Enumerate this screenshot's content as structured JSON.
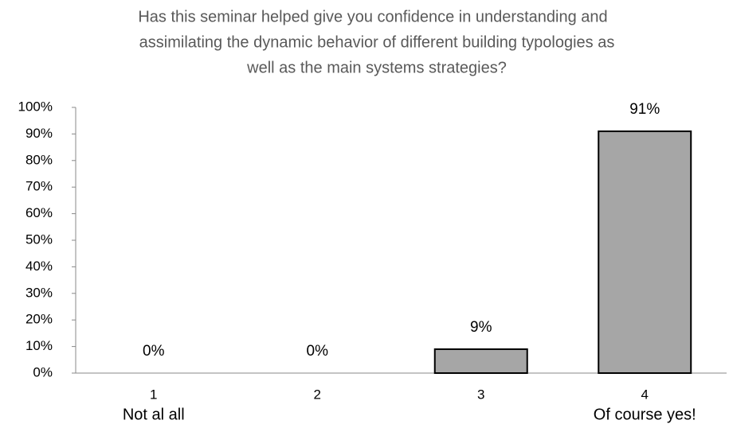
{
  "chart_data": {
    "type": "bar",
    "title": [
      "Has this seminar helped give you confidence in understanding and",
      "assimilating the dynamic behavior of different building typologies as",
      "well as the main systems strategies?"
    ],
    "categories": [
      "1",
      "2",
      "3",
      "4"
    ],
    "category_sublabels": [
      "Not al all",
      null,
      null,
      "Of course yes!"
    ],
    "values": [
      0,
      0,
      9,
      91
    ],
    "value_labels": [
      "0%",
      "0%",
      "9%",
      "91%"
    ],
    "color": "#a6a6a6",
    "ylim": [
      0,
      100
    ],
    "yticks": [
      {
        "value": 0,
        "label": "0%"
      },
      {
        "value": 10,
        "label": "10%"
      },
      {
        "value": 20,
        "label": "20%"
      },
      {
        "value": 30,
        "label": "30%"
      },
      {
        "value": 40,
        "label": "40%"
      },
      {
        "value": 50,
        "label": "50%"
      },
      {
        "value": 60,
        "label": "60%"
      },
      {
        "value": 70,
        "label": "70%"
      },
      {
        "value": 80,
        "label": "80%"
      },
      {
        "value": 90,
        "label": "90%"
      },
      {
        "value": 100,
        "label": "100%"
      }
    ],
    "grid": false
  }
}
